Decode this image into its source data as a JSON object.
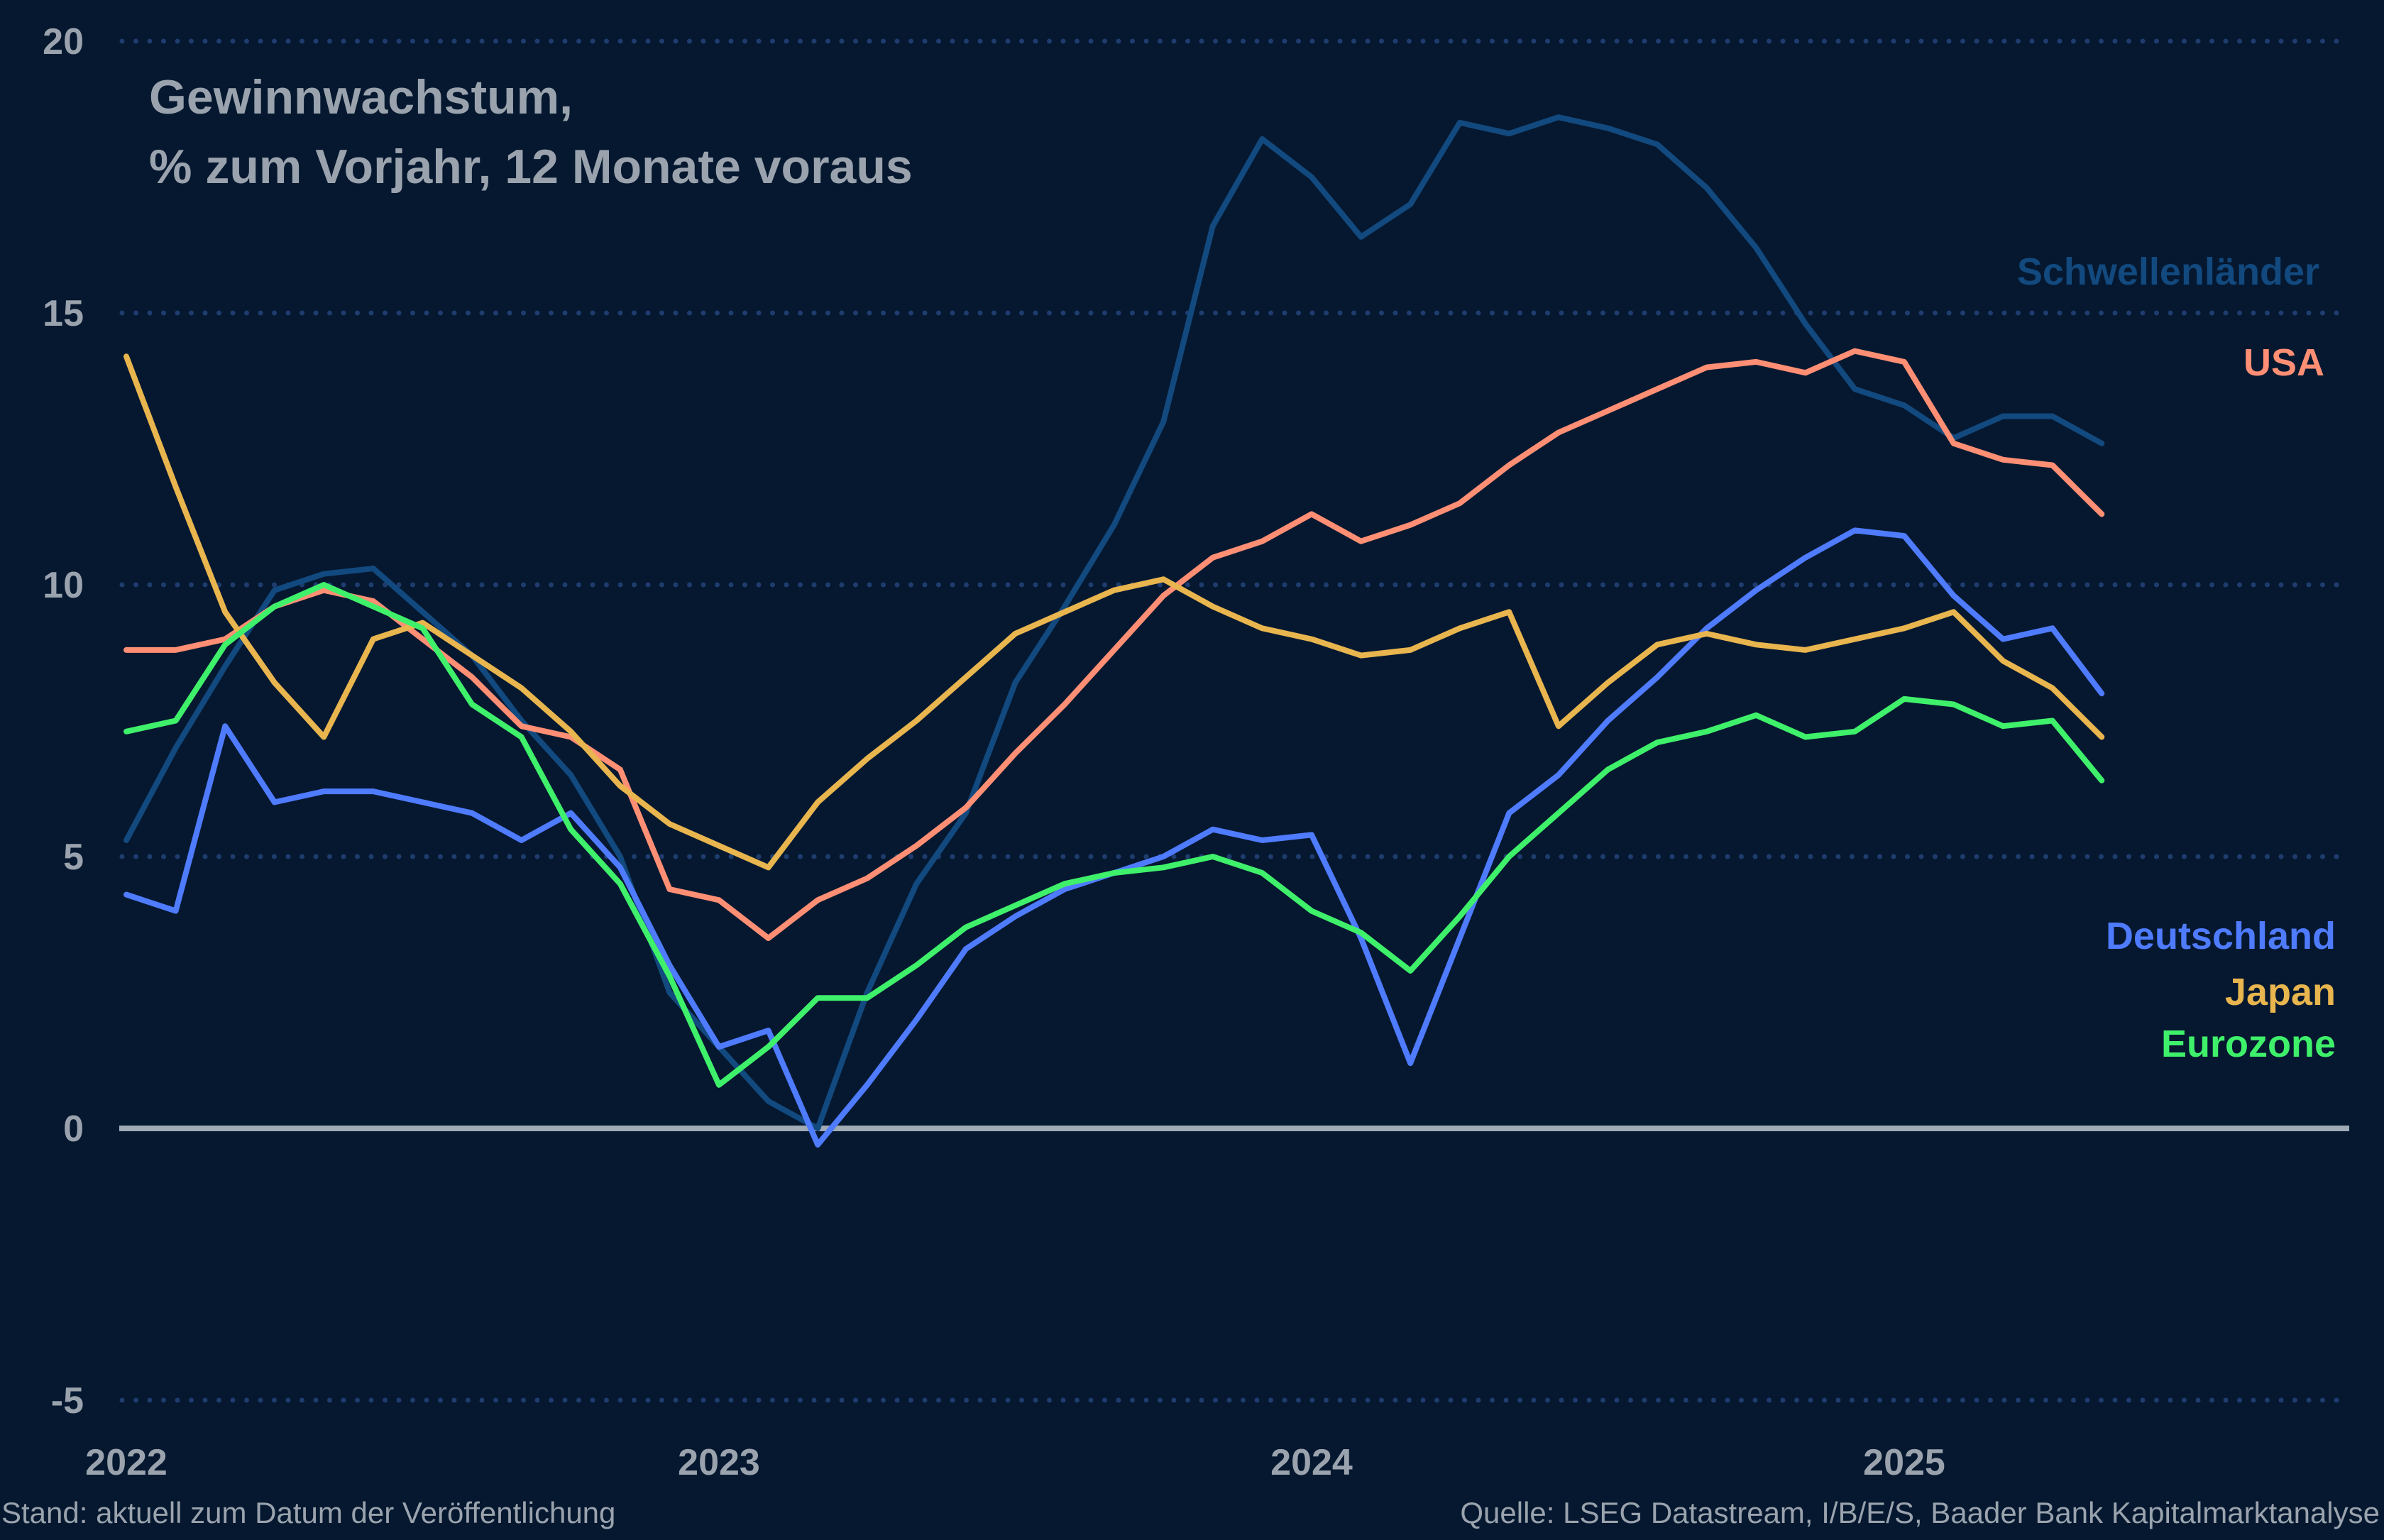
{
  "chart_data": {
    "type": "line",
    "title": [
      "Gewinnwachstum,",
      "% zum Vorjahr, 12 Monate voraus"
    ],
    "xlabel": "",
    "ylabel": "",
    "ylim": [
      -5,
      20
    ],
    "yticks": [
      "20",
      "15",
      "10",
      "5",
      "0",
      "-5"
    ],
    "ytick_values": [
      20,
      15,
      10,
      5,
      0,
      -5
    ],
    "xticks": [
      "2022",
      "2023",
      "2024",
      "2025"
    ],
    "grid": true,
    "legend": "right, inline labels",
    "x": [
      "2022-01",
      "2022-02",
      "2022-03",
      "2022-04",
      "2022-05",
      "2022-06",
      "2022-07",
      "2022-08",
      "2022-09",
      "2022-10",
      "2022-11",
      "2022-12",
      "2023-01",
      "2023-02",
      "2023-03",
      "2023-04",
      "2023-05",
      "2023-06",
      "2023-07",
      "2023-08",
      "2023-09",
      "2023-10",
      "2023-11",
      "2023-12",
      "2024-01",
      "2024-02",
      "2024-03",
      "2024-04",
      "2024-05",
      "2024-06",
      "2024-07",
      "2024-08",
      "2024-09",
      "2024-10",
      "2024-11",
      "2024-12",
      "2025-01",
      "2025-02",
      "2025-03",
      "2025-04",
      "2025-05"
    ],
    "series": [
      {
        "name": "Schwellenländer",
        "color": "#12497e",
        "values": [
          5.3,
          7.0,
          8.5,
          9.9,
          10.2,
          10.3,
          9.5,
          8.7,
          7.5,
          6.5,
          5.0,
          2.5,
          1.5,
          0.5,
          0.0,
          2.5,
          4.5,
          5.8,
          8.2,
          9.6,
          11.1,
          13.0,
          16.6,
          18.2,
          17.5,
          16.4,
          17.0,
          18.5,
          18.3,
          18.6,
          18.4,
          18.1,
          17.3,
          16.2,
          14.8,
          13.6,
          13.3,
          12.7,
          13.1,
          13.1,
          12.6
        ]
      },
      {
        "name": "USA",
        "color": "#ff8f74",
        "values": [
          8.8,
          8.8,
          9.0,
          9.6,
          9.9,
          9.7,
          9.0,
          8.3,
          7.4,
          7.2,
          6.6,
          4.4,
          4.2,
          3.5,
          4.2,
          4.6,
          5.2,
          5.9,
          6.9,
          7.8,
          8.8,
          9.8,
          10.5,
          10.8,
          11.3,
          10.8,
          11.1,
          11.5,
          12.2,
          12.8,
          13.2,
          13.6,
          14.0,
          14.1,
          13.9,
          14.3,
          14.1,
          12.6,
          12.3,
          12.2,
          11.3
        ]
      },
      {
        "name": "Deutschland",
        "color": "#4f7bff",
        "values": [
          4.3,
          4.0,
          7.4,
          6.0,
          6.2,
          6.2,
          6.0,
          5.8,
          5.3,
          5.8,
          4.8,
          3.0,
          1.5,
          1.8,
          -0.3,
          0.8,
          2.0,
          3.3,
          3.9,
          4.4,
          4.7,
          5.0,
          5.5,
          5.3,
          5.4,
          3.5,
          1.2,
          3.5,
          5.8,
          6.5,
          7.5,
          8.3,
          9.2,
          9.9,
          10.5,
          11.0,
          10.9,
          9.8,
          9.0,
          9.2,
          8.0
        ]
      },
      {
        "name": "Japan",
        "color": "#e8b54e",
        "values": [
          14.2,
          11.8,
          9.5,
          8.2,
          7.2,
          9.0,
          9.3,
          8.7,
          8.1,
          7.3,
          6.3,
          5.6,
          5.2,
          4.8,
          6.0,
          6.8,
          7.5,
          8.3,
          9.1,
          9.5,
          9.9,
          10.1,
          9.6,
          9.2,
          9.0,
          8.7,
          8.8,
          9.2,
          9.5,
          7.4,
          8.2,
          8.9,
          9.1,
          8.9,
          8.8,
          9.0,
          9.2,
          9.5,
          8.6,
          8.1,
          7.2
        ]
      },
      {
        "name": "Eurozone",
        "color": "#3ff06a",
        "values": [
          7.3,
          7.5,
          8.9,
          9.6,
          10.0,
          9.6,
          9.2,
          7.8,
          7.2,
          5.5,
          4.5,
          2.8,
          0.8,
          1.5,
          2.4,
          2.4,
          3.0,
          3.7,
          4.1,
          4.5,
          4.7,
          4.8,
          5.0,
          4.7,
          4.0,
          3.6,
          2.9,
          3.9,
          5.0,
          5.8,
          6.6,
          7.1,
          7.3,
          7.6,
          7.2,
          7.3,
          7.9,
          7.8,
          7.4,
          7.5,
          6.4
        ]
      }
    ]
  },
  "colors": {
    "background": "#051830",
    "grid": "#1f3c6e",
    "zero_line": "#a0aab4",
    "text": "#9aa3ad"
  },
  "footer": {
    "left": "Stand: aktuell zum Datum der Veröffentlichung",
    "right": "Quelle: LSEG Datastream, I/B/E/S, Baader Bank Kapitalmarktanalyse"
  }
}
